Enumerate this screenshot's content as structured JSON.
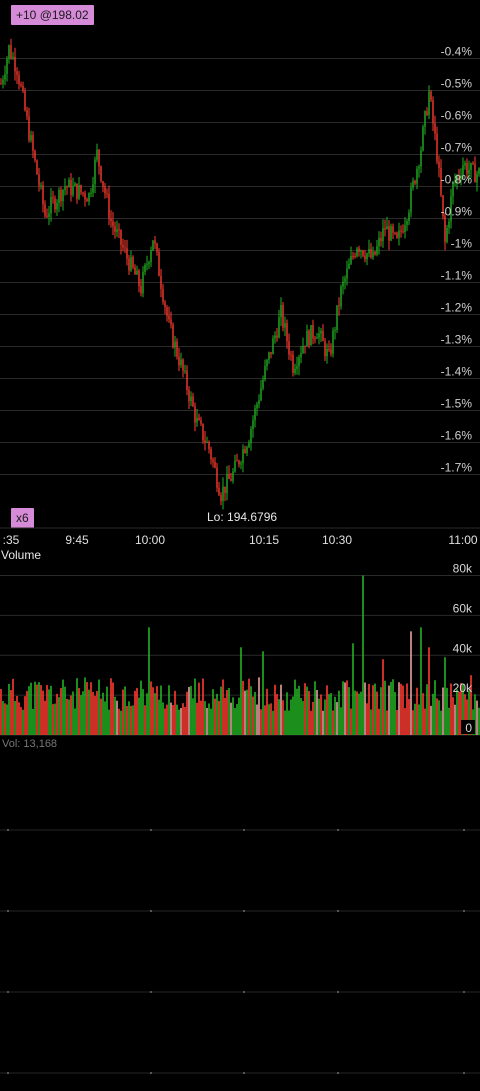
{
  "markers": {
    "position_badge": "+10 @198.02",
    "multiplier_badge": "x6"
  },
  "chart_data": [
    {
      "type": "candlestick",
      "title": "",
      "x_ticks": [
        ":35",
        "9:45",
        "10:00",
        "10:15",
        "10:30",
        "11:00"
      ],
      "y_axis": {
        "unit": "% change",
        "ticks": [
          -0.4,
          -0.5,
          -0.6,
          -0.7,
          -0.8,
          -0.9,
          -1,
          -1.1,
          -1.2,
          -1.3,
          -1.4,
          -1.5,
          -1.6,
          -1.7
        ],
        "tick_labels": [
          "-0.4%",
          "-0.5%",
          "-0.6%",
          "-0.7%",
          "-0.8%",
          "-0.9%",
          "-1%",
          "-1.1%",
          "-1.2%",
          "-1.3%",
          "-1.4%",
          "-1.5%",
          "-1.6%",
          "-1.7%"
        ],
        "range": [
          -1.84,
          -0.28
        ]
      },
      "low_annotation": "Lo: 194.6796",
      "grid": true,
      "up_color": "#22b222",
      "down_color": "#ff3b30",
      "path_keypoints_pct": [
        {
          "t": 0,
          "v": -0.5
        },
        {
          "t": 4,
          "v": -0.39
        },
        {
          "t": 8,
          "v": -0.45
        },
        {
          "t": 13,
          "v": -0.62
        },
        {
          "t": 22,
          "v": -0.91
        },
        {
          "t": 32,
          "v": -0.82
        },
        {
          "t": 44,
          "v": -0.85
        },
        {
          "t": 48,
          "v": -0.72
        },
        {
          "t": 55,
          "v": -0.93
        },
        {
          "t": 62,
          "v": -1.03
        },
        {
          "t": 70,
          "v": -1.14
        },
        {
          "t": 76,
          "v": -0.98
        },
        {
          "t": 84,
          "v": -1.26
        },
        {
          "t": 90,
          "v": -1.38
        },
        {
          "t": 98,
          "v": -1.56
        },
        {
          "t": 104,
          "v": -1.64
        },
        {
          "t": 110,
          "v": -1.78
        },
        {
          "t": 116,
          "v": -1.72
        },
        {
          "t": 124,
          "v": -1.6
        },
        {
          "t": 132,
          "v": -1.4
        },
        {
          "t": 140,
          "v": -1.22
        },
        {
          "t": 146,
          "v": -1.38
        },
        {
          "t": 152,
          "v": -1.3
        },
        {
          "t": 158,
          "v": -1.27
        },
        {
          "t": 164,
          "v": -1.36
        },
        {
          "t": 170,
          "v": -1.15
        },
        {
          "t": 178,
          "v": -1.0
        },
        {
          "t": 186,
          "v": -1.05
        },
        {
          "t": 192,
          "v": -0.95
        },
        {
          "t": 198,
          "v": -1.0
        },
        {
          "t": 204,
          "v": -0.88
        },
        {
          "t": 210,
          "v": -0.7
        },
        {
          "t": 214,
          "v": -0.53
        },
        {
          "t": 218,
          "v": -0.72
        },
        {
          "t": 222,
          "v": -1.0
        },
        {
          "t": 226,
          "v": -0.82
        },
        {
          "t": 231,
          "v": -0.75
        },
        {
          "t": 236,
          "v": -0.78
        }
      ]
    },
    {
      "type": "bar",
      "title": "Volume",
      "y_axis": {
        "ticks": [
          0,
          20000,
          40000,
          60000,
          80000
        ],
        "tick_labels": [
          "0",
          "20k",
          "40k",
          "60k",
          "80k"
        ],
        "range": [
          0,
          80000
        ]
      },
      "readout": "Vol: 13,168",
      "grid": true,
      "spikes": [
        {
          "t": 74,
          "v": 54000
        },
        {
          "t": 120,
          "v": 44000
        },
        {
          "t": 131,
          "v": 42000
        },
        {
          "t": 181,
          "v": 80000
        },
        {
          "t": 176,
          "v": 46000
        },
        {
          "t": 205,
          "v": 52000
        },
        {
          "t": 210,
          "v": 54000
        },
        {
          "t": 191,
          "v": 38000
        },
        {
          "t": 214,
          "v": 44000
        },
        {
          "t": 222,
          "v": 39000
        },
        {
          "t": 235,
          "v": 30000
        }
      ]
    }
  ]
}
